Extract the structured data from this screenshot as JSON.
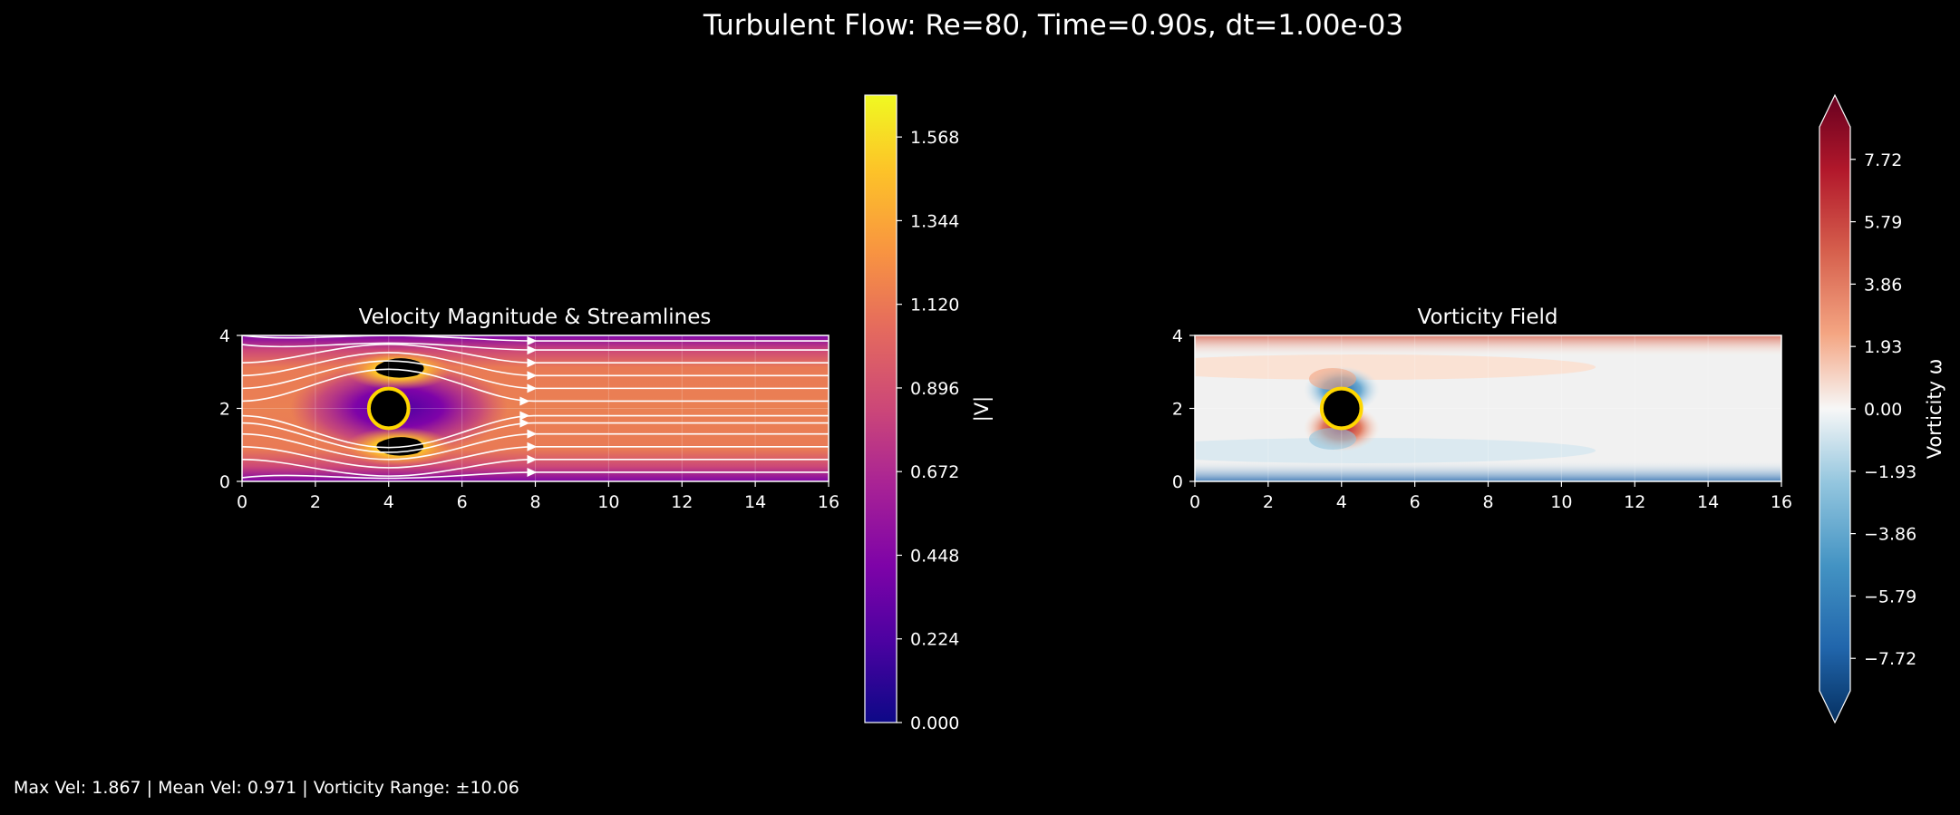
{
  "figure": {
    "title": "Turbulent Flow: Re=80, Time=0.90s, dt=1.00e-03",
    "footer": "Max Vel: 1.867 | Mean Vel: 0.971 | Vorticity Range: ±10.06"
  },
  "chart_data": [
    {
      "type": "heatmap",
      "title": "Velocity Magnitude & Streamlines",
      "field": "velocity magnitude with streamlines",
      "xlim": [
        0,
        16
      ],
      "ylim": [
        0,
        4
      ],
      "x_ticks": [
        0,
        2,
        4,
        6,
        8,
        10,
        12,
        14,
        16
      ],
      "y_ticks": [
        0,
        2,
        4
      ],
      "cylinder": {
        "x": 4,
        "y": 2,
        "r": 0.45,
        "edge_color": "#FFD700"
      },
      "colormap": "plasma",
      "colorbar": {
        "label": "|V|",
        "range": [
          0,
          1.68
        ],
        "ticks": [
          "0.000",
          "0.224",
          "0.448",
          "0.672",
          "0.896",
          "1.120",
          "1.344",
          "1.568"
        ],
        "tick_values": [
          0,
          0.224,
          0.448,
          0.672,
          0.896,
          1.12,
          1.344,
          1.568
        ]
      },
      "streamline_y": [
        0.25,
        0.6,
        0.95,
        1.3,
        1.6,
        1.8,
        2.2,
        2.55,
        2.9,
        3.25,
        3.6,
        3.85
      ],
      "grid": true
    },
    {
      "type": "heatmap",
      "title": "Vorticity Field",
      "field": "vorticity",
      "xlim": [
        0,
        16
      ],
      "ylim": [
        0,
        4
      ],
      "x_ticks": [
        0,
        2,
        4,
        6,
        8,
        10,
        12,
        14,
        16
      ],
      "y_ticks": [
        0,
        2,
        4
      ],
      "cylinder": {
        "x": 4,
        "y": 2,
        "r": 0.45,
        "edge_color": "#FFD700"
      },
      "colormap": "RdBu_r",
      "colorbar": {
        "label": "Vorticity ω",
        "range": [
          -8.5,
          8.5
        ],
        "extend": "both",
        "ticks": [
          "−7.72",
          "−5.79",
          "−3.86",
          "−1.93",
          "0.00",
          "1.93",
          "3.86",
          "5.79",
          "7.72"
        ],
        "tick_values": [
          -7.72,
          -5.79,
          -3.86,
          -1.93,
          0,
          1.93,
          3.86,
          5.79,
          7.72
        ]
      },
      "grid": true
    }
  ]
}
